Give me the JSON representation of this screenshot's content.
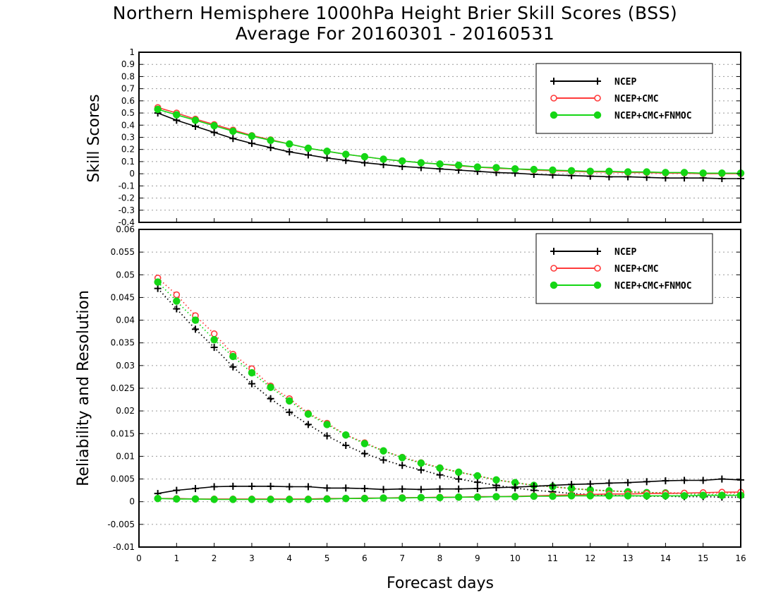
{
  "title_line1": "Northern Hemisphere 1000hPa Height Brier Skill Scores (BSS)",
  "title_line2": "Average For 20160301 - 20160531",
  "colors": {
    "NCEP": "#000000",
    "NCEP+CMC": "#ff3b3b",
    "NCEP+CMC+FNMOC": "#14d614"
  },
  "chart_data": [
    {
      "type": "line",
      "panel": "top",
      "ylabel": "Skill Scores",
      "ylim": [
        -0.4,
        1
      ],
      "yticks": [
        "-0.4",
        "-0.3",
        "-0.2",
        "-0.1",
        "0",
        "0.1",
        "0.2",
        "0.3",
        "0.4",
        "0.5",
        "0.6",
        "0.7",
        "0.8",
        "0.9",
        "1"
      ],
      "xlim": [
        0,
        16
      ],
      "grid": true,
      "legend": [
        "NCEP",
        "NCEP+CMC",
        "NCEP+CMC+FNMOC"
      ],
      "legend_position": "top-right",
      "x": [
        0.5,
        1,
        1.5,
        2,
        2.5,
        3,
        3.5,
        4,
        4.5,
        5,
        5.5,
        6,
        6.5,
        7,
        7.5,
        8,
        8.5,
        9,
        9.5,
        10,
        10.5,
        11,
        11.5,
        12,
        12.5,
        13,
        13.5,
        14,
        14.5,
        15,
        15.5,
        16
      ],
      "series": [
        {
          "name": "NCEP",
          "marker": "plus",
          "values": [
            0.5,
            0.44,
            0.39,
            0.34,
            0.29,
            0.25,
            0.215,
            0.18,
            0.155,
            0.13,
            0.11,
            0.09,
            0.075,
            0.06,
            0.05,
            0.04,
            0.03,
            0.02,
            0.01,
            0.005,
            -0.005,
            -0.01,
            -0.015,
            -0.02,
            -0.025,
            -0.025,
            -0.03,
            -0.035,
            -0.035,
            -0.035,
            -0.04,
            -0.04
          ]
        },
        {
          "name": "NCEP+CMC",
          "marker": "open-circle",
          "values": [
            0.545,
            0.5,
            0.45,
            0.405,
            0.36,
            0.315,
            0.28,
            0.245,
            0.21,
            0.185,
            0.16,
            0.14,
            0.12,
            0.105,
            0.09,
            0.08,
            0.065,
            0.055,
            0.045,
            0.04,
            0.03,
            0.025,
            0.02,
            0.015,
            0.015,
            0.01,
            0.01,
            0.005,
            0.005,
            0.0,
            0.0,
            0.0
          ]
        },
        {
          "name": "NCEP+CMC+FNMOC",
          "marker": "filled-circle",
          "values": [
            0.53,
            0.485,
            0.44,
            0.395,
            0.35,
            0.31,
            0.275,
            0.245,
            0.21,
            0.185,
            0.16,
            0.14,
            0.12,
            0.105,
            0.09,
            0.08,
            0.07,
            0.055,
            0.05,
            0.04,
            0.035,
            0.03,
            0.025,
            0.02,
            0.02,
            0.015,
            0.015,
            0.01,
            0.01,
            0.005,
            0.005,
            0.005
          ]
        }
      ]
    },
    {
      "type": "line",
      "panel": "bottom",
      "ylabel": "Reliability and Resolution",
      "xlabel": "Forecast days",
      "ylim": [
        -0.01,
        0.06
      ],
      "yticks": [
        "-0.01",
        "-0.005",
        "0",
        "0.005",
        "0.01",
        "0.015",
        "0.02",
        "0.025",
        "0.03",
        "0.035",
        "0.04",
        "0.045",
        "0.05",
        "0.055",
        "0.06"
      ],
      "xlim": [
        0,
        16
      ],
      "xticks": [
        "0",
        "1",
        "2",
        "3",
        "4",
        "5",
        "6",
        "7",
        "8",
        "9",
        "10",
        "11",
        "12",
        "13",
        "14",
        "15",
        "16"
      ],
      "grid": true,
      "legend": [
        "NCEP",
        "NCEP+CMC",
        "NCEP+CMC+FNMOC"
      ],
      "legend_position": "top-right",
      "x": [
        0.5,
        1,
        1.5,
        2,
        2.5,
        3,
        3.5,
        4,
        4.5,
        5,
        5.5,
        6,
        6.5,
        7,
        7.5,
        8,
        8.5,
        9,
        9.5,
        10,
        10.5,
        11,
        11.5,
        12,
        12.5,
        13,
        13.5,
        14,
        14.5,
        15,
        15.5,
        16
      ],
      "series": [
        {
          "name": "NCEP",
          "metric": "resolution",
          "line": "dotted",
          "marker": "plus",
          "values": [
            0.047,
            0.0425,
            0.038,
            0.034,
            0.0297,
            0.026,
            0.0227,
            0.0197,
            0.017,
            0.0145,
            0.0124,
            0.0106,
            0.0092,
            0.008,
            0.007,
            0.0059,
            0.005,
            0.0043,
            0.0036,
            0.003,
            0.0025,
            0.0022,
            0.0018,
            0.0016,
            0.0014,
            0.0013,
            0.0012,
            0.0012,
            0.0011,
            0.0011,
            0.001,
            0.001
          ]
        },
        {
          "name": "NCEP+CMC",
          "metric": "resolution",
          "line": "dotted",
          "marker": "open-circle",
          "values": [
            0.0493,
            0.0456,
            0.041,
            0.037,
            0.0325,
            0.0293,
            0.0255,
            0.0227,
            0.0195,
            0.0173,
            0.0147,
            0.013,
            0.0112,
            0.0098,
            0.0086,
            0.0075,
            0.0065,
            0.0057,
            0.0048,
            0.0042,
            0.0036,
            0.0033,
            0.0029,
            0.0026,
            0.0024,
            0.0022,
            0.002,
            0.002,
            0.0019,
            0.0019,
            0.0019,
            0.0019
          ]
        },
        {
          "name": "NCEP+CMC+FNMOC",
          "metric": "resolution",
          "line": "dotted",
          "marker": "filled-circle",
          "values": [
            0.0484,
            0.0442,
            0.04,
            0.0357,
            0.032,
            0.0284,
            0.0252,
            0.0222,
            0.0193,
            0.017,
            0.0147,
            0.0128,
            0.0112,
            0.0097,
            0.0085,
            0.0074,
            0.0065,
            0.0057,
            0.0048,
            0.0042,
            0.0036,
            0.0033,
            0.0029,
            0.0026,
            0.0024,
            0.0022,
            0.002,
            0.0019,
            0.0017,
            0.0016,
            0.0015,
            0.0015
          ]
        },
        {
          "name": "NCEP",
          "metric": "reliability",
          "line": "solid",
          "marker": "plus",
          "values": [
            0.0018,
            0.0025,
            0.0029,
            0.0033,
            0.0034,
            0.0034,
            0.0034,
            0.0033,
            0.0033,
            0.003,
            0.003,
            0.0029,
            0.0027,
            0.0028,
            0.0027,
            0.0028,
            0.0028,
            0.0029,
            0.0031,
            0.0032,
            0.0034,
            0.0036,
            0.0038,
            0.0039,
            0.0041,
            0.0042,
            0.0044,
            0.0046,
            0.0047,
            0.0047,
            0.005,
            0.0048
          ]
        },
        {
          "name": "NCEP+CMC",
          "metric": "reliability",
          "line": "solid",
          "marker": "open-circle",
          "values": [
            0.0007,
            0.0007,
            0.0006,
            0.0006,
            0.0006,
            0.0006,
            0.0006,
            0.0006,
            0.0006,
            0.0007,
            0.0007,
            0.0008,
            0.0008,
            0.0009,
            0.0009,
            0.001,
            0.001,
            0.0011,
            0.0011,
            0.0012,
            0.0013,
            0.0014,
            0.0015,
            0.0016,
            0.0017,
            0.0017,
            0.0018,
            0.0018,
            0.0019,
            0.002,
            0.0021,
            0.0021
          ]
        },
        {
          "name": "NCEP+CMC+FNMOC",
          "metric": "reliability",
          "line": "solid",
          "marker": "filled-circle",
          "values": [
            0.0007,
            0.0006,
            0.0006,
            0.0005,
            0.0005,
            0.0005,
            0.0005,
            0.0005,
            0.0005,
            0.0006,
            0.0007,
            0.0007,
            0.0008,
            0.0008,
            0.0009,
            0.0009,
            0.001,
            0.001,
            0.0011,
            0.0011,
            0.0012,
            0.0012,
            0.0013,
            0.0013,
            0.0013,
            0.0013,
            0.0013,
            0.0013,
            0.0013,
            0.0014,
            0.0014,
            0.0014
          ]
        }
      ]
    }
  ]
}
